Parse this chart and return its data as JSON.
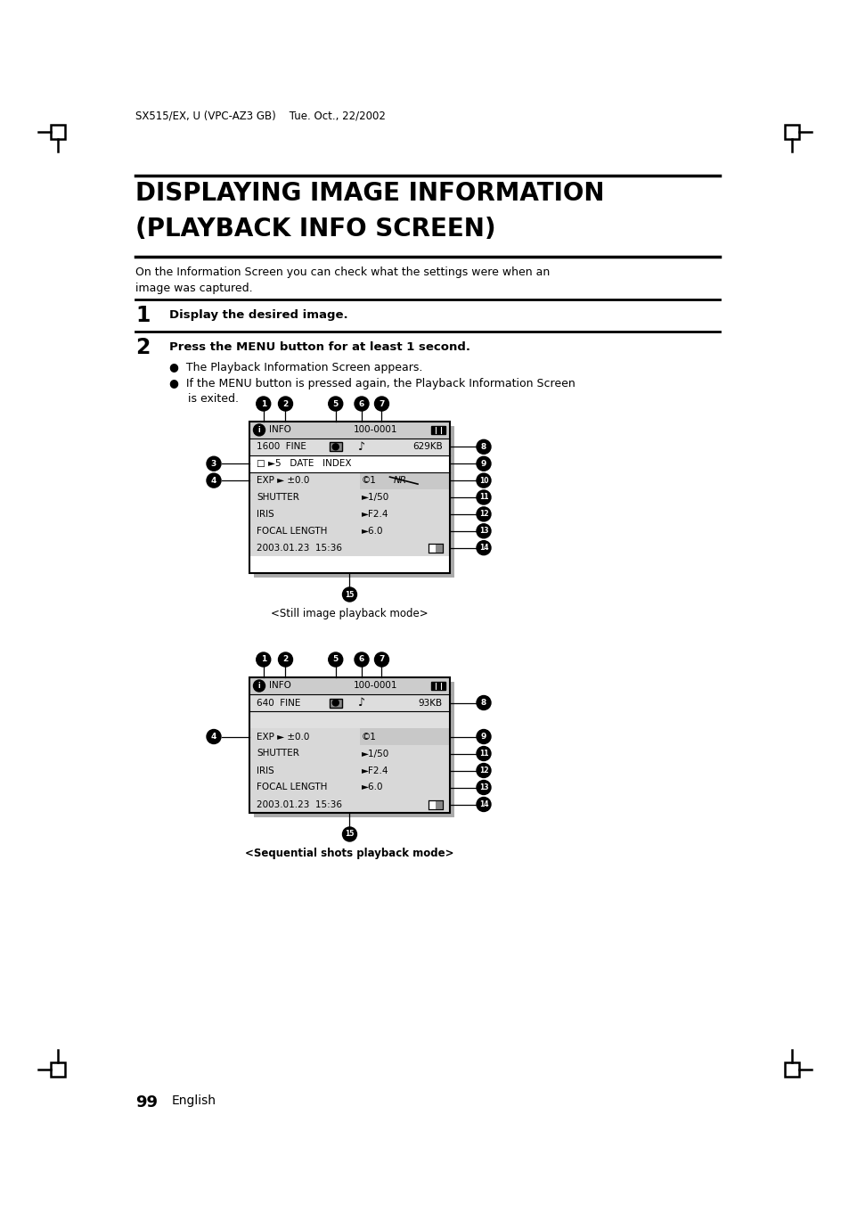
{
  "bg_color": "#ffffff",
  "header_text": "SX515/EX, U (VPC-AZ3 GB)    Tue. Oct., 22/2002",
  "title_line1": "DISPLAYING IMAGE INFORMATION",
  "title_line2": "(PLAYBACK INFO SCREEN)",
  "intro_text1": "On the Information Screen you can check what the settings were when an",
  "intro_text2": "image was captured.",
  "step1_num": "1",
  "step1_text": "Display the desired image.",
  "step2_num": "2",
  "step2_text": "Press the MENU button for at least 1 second.",
  "bullet1": "The Playback Information Screen appears.",
  "bullet2": "If the MENU button is pressed again, the Playback Information Screen",
  "bullet2b": "is exited.",
  "still_caption": "<Still image playback mode>",
  "seq_caption": "<Sequential shots playback mode>",
  "page_num": "99",
  "page_lang": "English"
}
